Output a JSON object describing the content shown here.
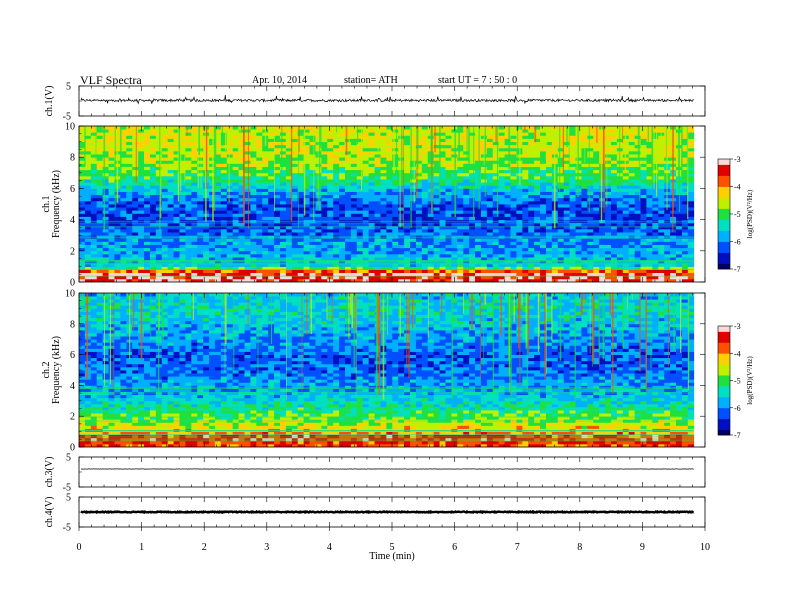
{
  "header": {
    "title": "VLF Spectra",
    "date": "Apr. 10, 2014",
    "station": "station= ATH",
    "start": "start UT =   7 : 50 : 0"
  },
  "chart_data": [
    {
      "type": "line",
      "panel": "ch1-waveform",
      "ylabel": "ch.1(V)",
      "ylim": [
        -5,
        5
      ],
      "y_ticks": [
        5,
        -5
      ],
      "xlim": [
        0,
        10
      ],
      "baseline": 0.2,
      "noise_amplitude": 0.4,
      "spike_amplitude": 1.6
    },
    {
      "type": "heatmap",
      "panel": "ch1-spectrogram",
      "ylabel_line1": "ch.1",
      "ylabel_line2": "Frequency (kHz)",
      "ylim": [
        0,
        10
      ],
      "y_ticks": [
        0,
        2,
        4,
        6,
        8,
        10
      ],
      "xlim": [
        0,
        10
      ],
      "data_end_min": 9.82,
      "colorbar": {
        "label": "log(PSD)(V²/Hz)",
        "ticks": [
          -3,
          -4,
          -5,
          -6,
          -7
        ],
        "range": [
          -7,
          -3
        ]
      },
      "profile": [
        {
          "f": 0.2,
          "v": -3.3
        },
        {
          "f": 0.6,
          "v": -3.2
        },
        {
          "f": 1.0,
          "v": -5.6
        },
        {
          "f": 1.8,
          "v": -5.8
        },
        {
          "f": 2.6,
          "v": -5.9
        },
        {
          "f": 3.4,
          "v": -6.2
        },
        {
          "f": 4.2,
          "v": -6.3
        },
        {
          "f": 5.0,
          "v": -6.2
        },
        {
          "f": 5.8,
          "v": -5.8
        },
        {
          "f": 6.6,
          "v": -5.1
        },
        {
          "f": 7.4,
          "v": -4.8
        },
        {
          "f": 8.2,
          "v": -4.6
        },
        {
          "f": 9.0,
          "v": -4.5
        },
        {
          "f": 9.8,
          "v": -4.5
        }
      ]
    },
    {
      "type": "heatmap",
      "panel": "ch2-spectrogram",
      "ylabel_line1": "ch.2",
      "ylabel_line2": "Frequency (kHz)",
      "ylim": [
        0,
        10
      ],
      "y_ticks": [
        0,
        2,
        4,
        6,
        8,
        10
      ],
      "xlim": [
        0,
        10
      ],
      "data_end_min": 9.82,
      "colorbar": {
        "label": "log(PSD)(V²/Hz)",
        "ticks": [
          -3,
          -4,
          -5,
          -6,
          -7
        ],
        "range": [
          -7,
          -3
        ]
      },
      "profile": [
        {
          "f": 0.2,
          "v": -3.8
        },
        {
          "f": 0.6,
          "v": -3.4
        },
        {
          "f": 1.0,
          "v": -4.2
        },
        {
          "f": 1.8,
          "v": -4.8
        },
        {
          "f": 2.6,
          "v": -5.3
        },
        {
          "f": 3.4,
          "v": -5.7
        },
        {
          "f": 4.2,
          "v": -5.9
        },
        {
          "f": 5.0,
          "v": -6.1
        },
        {
          "f": 5.8,
          "v": -6.2
        },
        {
          "f": 6.6,
          "v": -6.0
        },
        {
          "f": 7.4,
          "v": -5.8
        },
        {
          "f": 8.2,
          "v": -5.6
        },
        {
          "f": 9.0,
          "v": -5.5
        },
        {
          "f": 9.8,
          "v": -5.6
        }
      ]
    },
    {
      "type": "line",
      "panel": "ch3-waveform",
      "ylabel": "ch.3(V)",
      "ylim": [
        -5,
        5
      ],
      "y_ticks": [
        5,
        -5
      ],
      "xlim": [
        0,
        10
      ],
      "baseline": 1.0,
      "noise_amplitude": 0.05,
      "spike_amplitude": 0.0
    },
    {
      "type": "line",
      "panel": "ch4-waveform",
      "ylabel": "ch.4(V)",
      "ylim": [
        -5,
        5
      ],
      "y_ticks": [
        5,
        -5
      ],
      "xlim": [
        0,
        10
      ],
      "baseline": 0.0,
      "noise_amplitude": 0.15,
      "spike_amplitude": 0.0
    }
  ],
  "x_axis": {
    "label": "Time (min)",
    "ticks": [
      0,
      1,
      2,
      3,
      4,
      5,
      6,
      7,
      8,
      9,
      10
    ]
  },
  "colormap": [
    "#000060",
    "#0010c0",
    "#0050ff",
    "#00b0ff",
    "#00e0c0",
    "#20e040",
    "#c0f000",
    "#ffd000",
    "#ff5000",
    "#e00000",
    "#f8d8d8"
  ]
}
